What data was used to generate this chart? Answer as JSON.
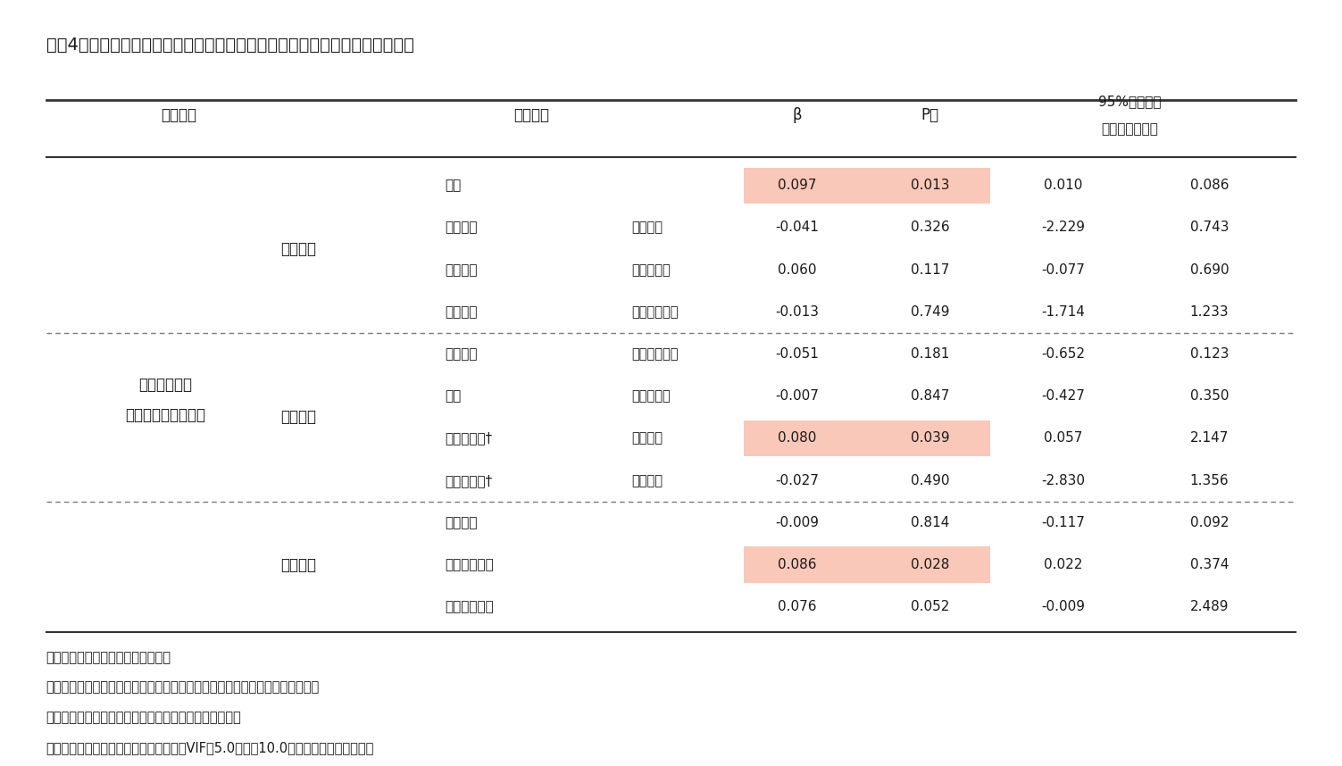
{
  "title": "図表4．対児感情尺度「育ちへの不安感」についての要因分析（重回帰分析）",
  "background_color": "#ffffff",
  "header": [
    "従属変数",
    "独立変数",
    "",
    "β",
    "P値",
    "95%信頼区間\n（下限・上限）"
  ],
  "col2_header": "独立変数",
  "dependent_var": "対児感情尺度\n「育ちへの不安感」",
  "groups": [
    {
      "name": "基本属性",
      "rows": [
        {
          "var1": "年齢",
          "var2": "",
          "beta": "0.097",
          "pval": "0.013",
          "lower": "0.010",
          "upper": "0.086",
          "highlight": true
        },
        {
          "var1": "婚姻有無",
          "var2": "（未婚）",
          "beta": "-0.041",
          "pval": "0.326",
          "lower": "-2.229",
          "upper": "0.743",
          "highlight": false
        },
        {
          "var1": "就労有無",
          "var2": "（未就労）",
          "beta": "0.060",
          "pval": "0.117",
          "lower": "-0.077",
          "upper": "0.690",
          "highlight": false
        },
        {
          "var1": "家族構成",
          "var2": "（ひとり親）",
          "beta": "-0.013",
          "pval": "0.749",
          "lower": "-1.714",
          "upper": "1.233",
          "highlight": false
        }
      ],
      "section_divider": true
    },
    {
      "name": "育児状況",
      "rows": [
        {
          "var1": "授乳方法",
          "var2": "（完全母乳）",
          "beta": "-0.051",
          "pval": "0.181",
          "lower": "-0.652",
          "upper": "0.123",
          "highlight": false
        },
        {
          "var1": "寝具",
          "var2": "（同寝具）",
          "beta": "-0.007",
          "pval": "0.847",
          "lower": "-0.427",
          "upper": "0.350",
          "highlight": false
        },
        {
          "var1": "育児協力者†",
          "var2": "（なし）",
          "beta": "0.080",
          "pval": "0.039",
          "lower": "0.057",
          "upper": "2.147",
          "highlight": true
        },
        {
          "var1": "育児相談者†",
          "var2": "（なし）",
          "beta": "-0.027",
          "pval": "0.490",
          "lower": "-2.830",
          "upper": "1.356",
          "highlight": false
        }
      ],
      "section_divider": true
    },
    {
      "name": "健康状態",
      "rows": [
        {
          "var1": "睡眠時間",
          "var2": "",
          "beta": "-0.009",
          "pval": "0.814",
          "lower": "-0.117",
          "upper": "0.092",
          "highlight": false
        },
        {
          "var1": "夜間起床回数",
          "var2": "",
          "beta": "0.086",
          "pval": "0.028",
          "lower": "0.022",
          "upper": "0.374",
          "highlight": true
        },
        {
          "var1": "主観的健康度",
          "var2": "",
          "beta": "0.076",
          "pval": "0.052",
          "lower": "-0.009",
          "upper": "2.489",
          "highlight": false
        }
      ],
      "section_divider": false
    }
  ],
  "notes": [
    "注１）質的変数はダミー変数へ変換",
    "注２）独立変数の投入可能数は問題なく、就寝方法は欠損が多いため投入除外",
    "注３）モデルの当てはまりや有意モデルについて確認済",
    "注４）多重共線性は、共線性の診断にてVIF値5.0以上、10.0以上がないことを確認済"
  ],
  "highlight_color": "#f9c8b8",
  "divider_color": "#5a5a5a",
  "header_line_color": "#333333",
  "text_color": "#1a1a1a"
}
